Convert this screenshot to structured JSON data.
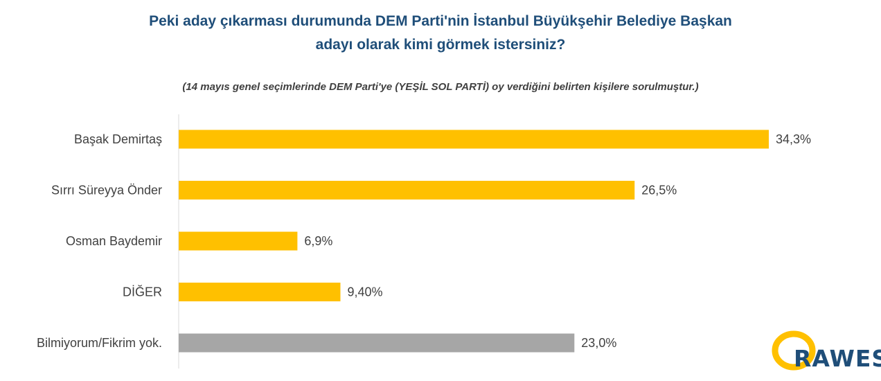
{
  "chart_data": {
    "type": "bar",
    "orientation": "horizontal",
    "title": "Peki aday çıkarması durumunda  DEM Parti'nin İstanbul Büyükşehir Belediye Başkan\nadayı olarak kimi görmek istersiniz?",
    "subtitle": "(14 mayıs genel seçimlerinde DEM Parti'ye (YEŞİL SOL PARTİ) oy verdiğini belirten kişilere sorulmuştur.)",
    "categories": [
      "Başak Demirtaş",
      "Sırrı Süreyya Önder",
      "Osman Baydemir",
      "DİĞER",
      "Bilmiyorum/Fikrim yok."
    ],
    "values": [
      34.3,
      26.5,
      6.9,
      9.4,
      23.0
    ],
    "value_labels": [
      "34,3%",
      "26,5%",
      "6,9%",
      "9,40%",
      "23,0%"
    ],
    "bar_colors": [
      "#ffc000",
      "#ffc000",
      "#ffc000",
      "#ffc000",
      "#a6a6a6"
    ],
    "xlim": [
      0,
      40
    ],
    "grid": false,
    "legend": "none"
  },
  "logo": {
    "text": "RAWEST",
    "ring_color": "#ffc000",
    "text_color": "#1f4e79"
  }
}
